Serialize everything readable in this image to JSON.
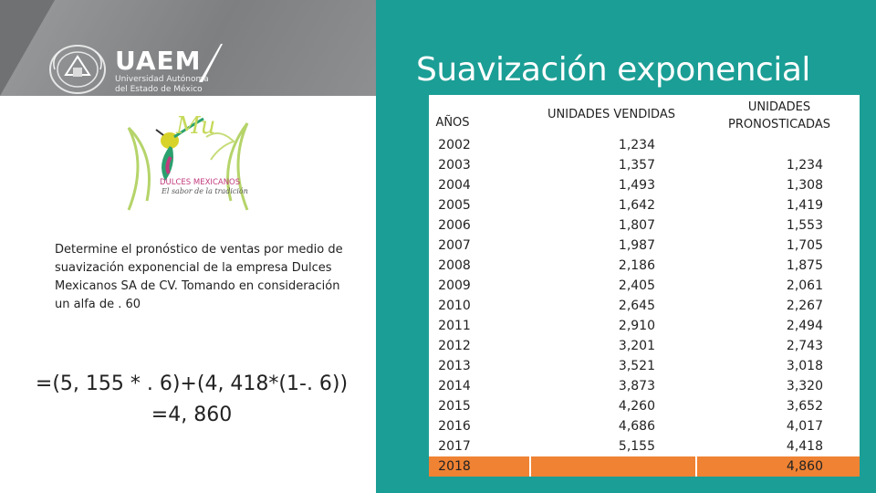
{
  "header": {
    "logo_main": "UAEM",
    "logo_sub_1": "Universidad Autónoma",
    "logo_sub_2": "del Estado de México",
    "title": "Suavización exponencial"
  },
  "brand": {
    "name": "DULCES MEXICANOS",
    "tagline": "El sabor de la tradición",
    "script": "Mu"
  },
  "left": {
    "description": "Determine el pronóstico de ventas por medio de suavización exponencial de la empresa Dulces Mexicanos SA de CV. Tomando en consideración un alfa de . 60",
    "formula_line1": "=(5, 155 * . 6)+(4, 418*(1-. 6))",
    "formula_line2": "=4, 860"
  },
  "table": {
    "headers": {
      "years": "AÑOS",
      "sold": "UNIDADES VENDIDAS",
      "forecast_1": "UNIDADES",
      "forecast_2": "PRONOSTICADAS"
    },
    "years": [
      "2002",
      "2003",
      "2004",
      "2005",
      "2006",
      "2007",
      "2008",
      "2009",
      "2010",
      "2011",
      "2012",
      "2013",
      "2014",
      "2015",
      "2016",
      "2017",
      "2018"
    ],
    "sold": [
      "1,234",
      "1,357",
      "1,493",
      "1,642",
      "1,807",
      "1,987",
      "2,186",
      "2,405",
      "2,645",
      "2,910",
      "3,201",
      "3,521",
      "3,873",
      "4,260",
      "4,686",
      "5,155"
    ],
    "forecast": [
      "1,234",
      "1,308",
      "1,419",
      "1,553",
      "1,705",
      "1,875",
      "2,061",
      "2,267",
      "2,494",
      "2,743",
      "3,018",
      "3,320",
      "3,652",
      "4,017",
      "4,418"
    ],
    "final_forecast": "4,860",
    "highlight_color": "#ef8233"
  }
}
